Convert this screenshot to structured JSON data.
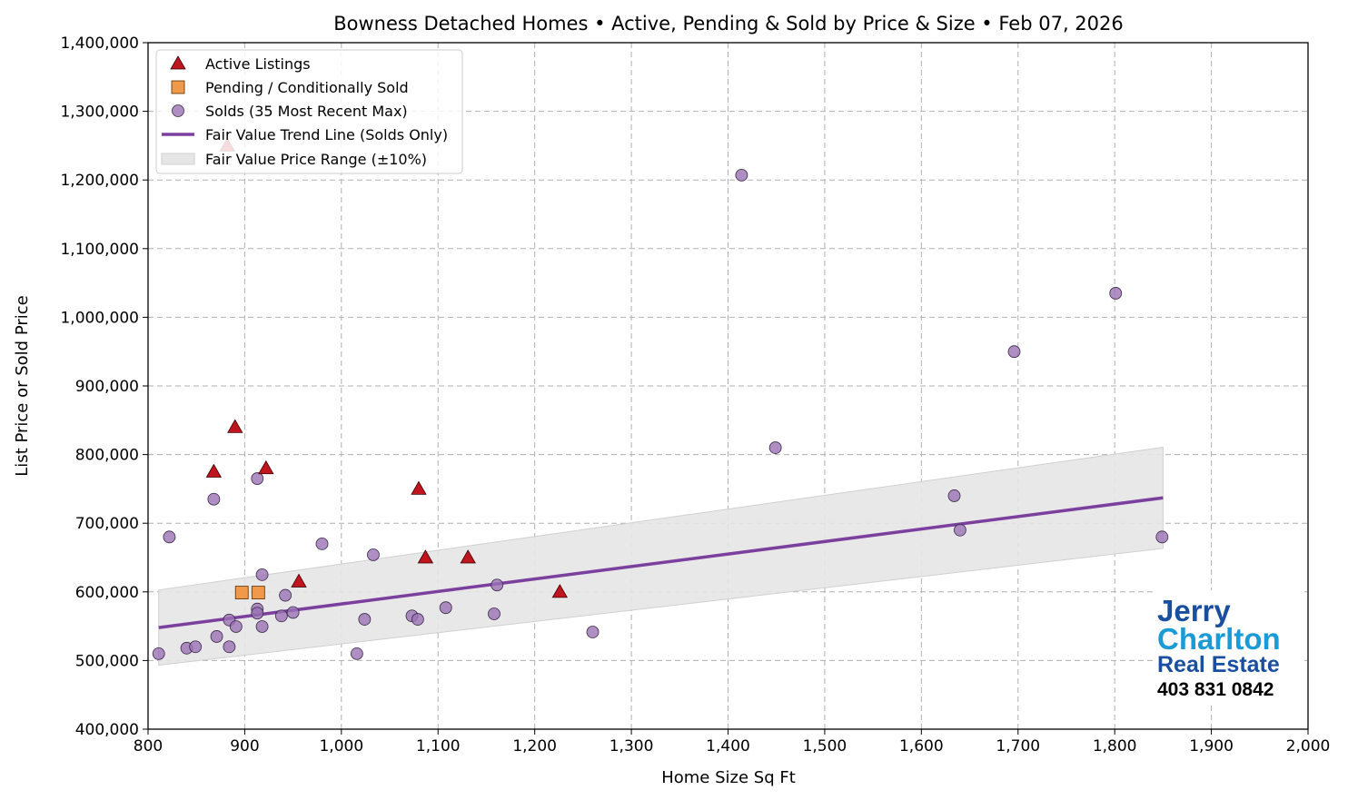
{
  "chart_data": {
    "type": "scatter",
    "title": "Bowness Detached Homes • Active, Pending & Sold by Price & Size • Feb 07, 2026",
    "xlabel": "Home Size Sq Ft",
    "ylabel": "List Price or Sold Price",
    "xlim": [
      800,
      2000
    ],
    "ylim": [
      400000,
      1400000
    ],
    "xticks": [
      800,
      900,
      1000,
      1100,
      1200,
      1300,
      1400,
      1500,
      1600,
      1700,
      1800,
      1900,
      2000
    ],
    "xtick_labels": [
      "800",
      "900",
      "1,000",
      "1,100",
      "1,200",
      "1,300",
      "1,400",
      "1,500",
      "1,600",
      "1,700",
      "1,800",
      "1,900",
      "2,000"
    ],
    "yticks": [
      400000,
      500000,
      600000,
      700000,
      800000,
      900000,
      1000000,
      1100000,
      1200000,
      1300000,
      1400000
    ],
    "ytick_labels": [
      "400,000",
      "500,000",
      "600,000",
      "700,000",
      "800,000",
      "900,000",
      "1,000,000",
      "1,100,000",
      "1,200,000",
      "1,300,000",
      "1,400,000"
    ],
    "grid": true,
    "legend_position": "top-left",
    "series": [
      {
        "name": "Active Listings",
        "marker": "triangle",
        "color": "#c0141e",
        "points": [
          [
            868,
            775000
          ],
          [
            890,
            840000
          ],
          [
            922,
            780000
          ],
          [
            956,
            615000
          ],
          [
            1080,
            750000
          ],
          [
            1087,
            650000
          ],
          [
            1131,
            650000
          ],
          [
            1226,
            599900
          ],
          [
            882,
            1250000
          ]
        ]
      },
      {
        "name": "Pending / Conditionally Sold",
        "marker": "square",
        "color": "#f0994a",
        "points": [
          [
            897,
            599000
          ],
          [
            914,
            599000
          ]
        ]
      },
      {
        "name": "Solds (35 Most Recent Max)",
        "marker": "circle",
        "color": "#9b72b5",
        "points": [
          [
            811,
            510000
          ],
          [
            822,
            680000
          ],
          [
            840,
            518000
          ],
          [
            849,
            520000
          ],
          [
            868,
            735000
          ],
          [
            871,
            535000
          ],
          [
            884,
            520000
          ],
          [
            884,
            559000
          ],
          [
            891,
            549500
          ],
          [
            913,
            765000
          ],
          [
            913,
            575000
          ],
          [
            913,
            569000
          ],
          [
            918,
            549500
          ],
          [
            918,
            625000
          ],
          [
            938,
            565000
          ],
          [
            942,
            595000
          ],
          [
            950,
            570000
          ],
          [
            980,
            670000
          ],
          [
            1016,
            510000
          ],
          [
            1024,
            560000
          ],
          [
            1033,
            654000
          ],
          [
            1073,
            565000
          ],
          [
            1079,
            560000
          ],
          [
            1108,
            577000
          ],
          [
            1158,
            568000
          ],
          [
            1161,
            610000
          ],
          [
            1260,
            541500
          ],
          [
            1414,
            1207000
          ],
          [
            1449,
            810000
          ],
          [
            1634,
            740000
          ],
          [
            1640,
            690000
          ],
          [
            1696,
            950000
          ],
          [
            1801,
            1035000
          ],
          [
            1849,
            680000
          ]
        ]
      },
      {
        "name": "Fair Value Trend Line (Solds Only)",
        "type": "line",
        "color": "#7b3f9e",
        "x": [
          811,
          1850
        ],
        "y": [
          548000,
          737000
        ]
      },
      {
        "name": "Fair Value Price Range (±10%)",
        "type": "band",
        "color": "#e6e6e6",
        "band_pct": 10
      }
    ]
  },
  "logo": {
    "line1": "Jerry",
    "line2": "Charlton",
    "line3": "Real Estate",
    "phone": "403 831 0842"
  }
}
